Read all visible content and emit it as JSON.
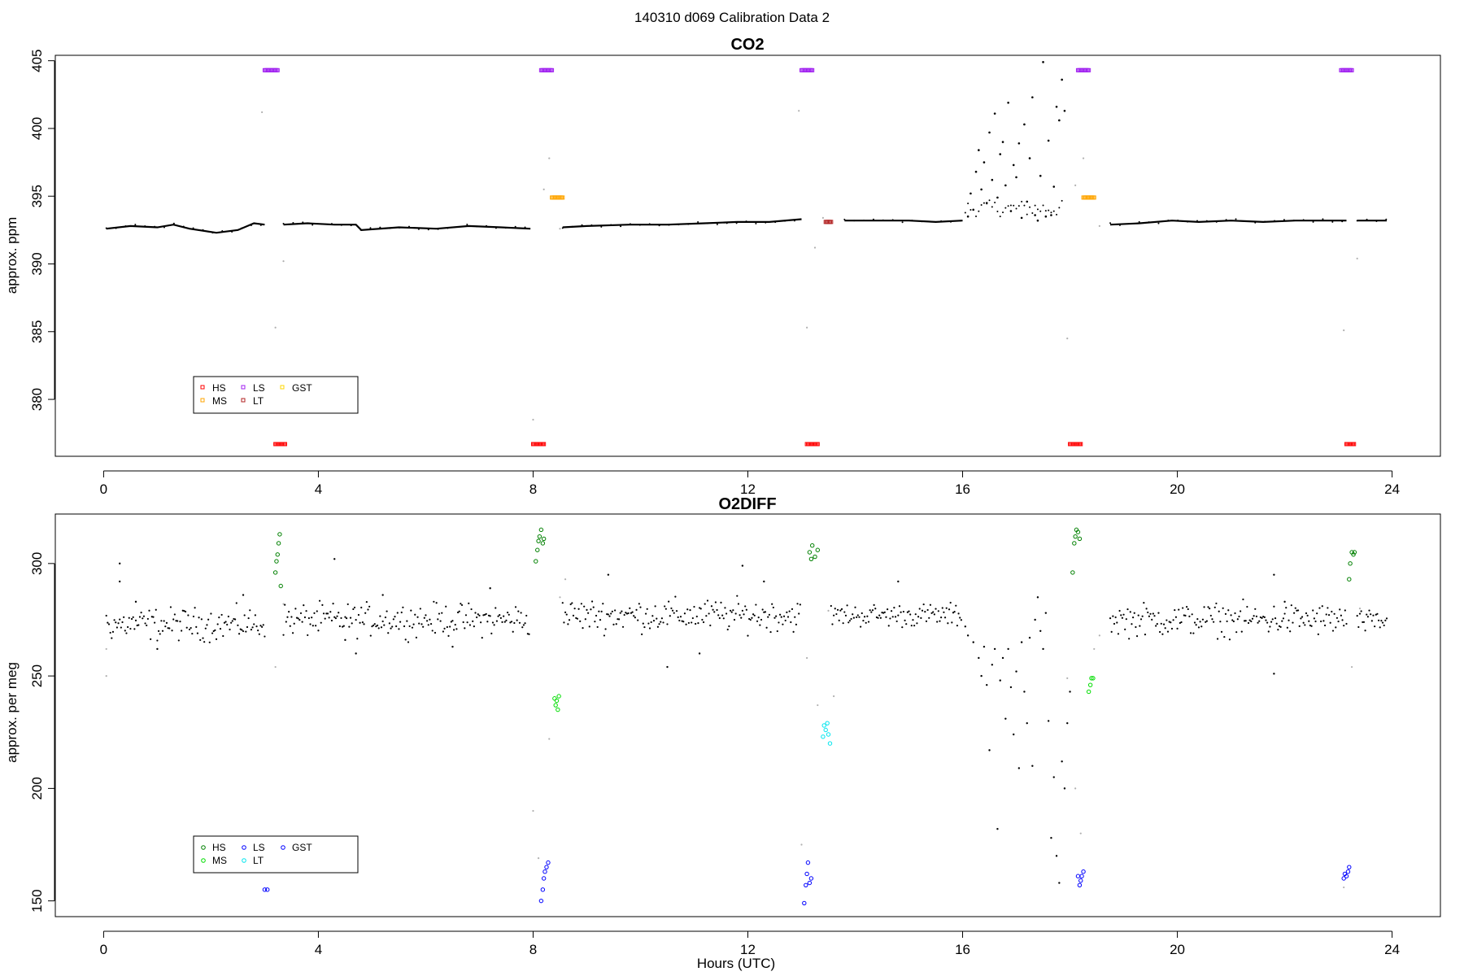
{
  "page": {
    "title": "140310   d069   Calibration Data 2"
  },
  "colors": {
    "ambient": "#000000",
    "ambient_flagged": "#b0b0b0",
    "HS_co2": "#ff0000",
    "MS_co2": "#ffa500",
    "LS_co2": "#a020f0",
    "LT_co2": "#b22222",
    "GST_co2": "#ffd700",
    "HS_o2": "#008000",
    "MS_o2": "#00dd00",
    "LS_o2": "#0000ff",
    "LT_o2": "#00e5ee",
    "GST_o2": "#0000ff"
  },
  "chart_data": [
    {
      "type": "scatter",
      "title": "CO2",
      "xlabel": "",
      "ylabel": "approx. ppm",
      "xlim": [
        -0.9,
        24.9
      ],
      "ylim": [
        375.8,
        405.4
      ],
      "xticks": [
        0,
        4,
        8,
        12,
        16,
        20,
        24
      ],
      "yticks": [
        380,
        385,
        390,
        395,
        400,
        405
      ],
      "legend": {
        "position": "bottom-left",
        "entries": [
          {
            "label": "HS",
            "color_key": "HS_co2"
          },
          {
            "label": "MS",
            "color_key": "MS_co2"
          },
          {
            "label": "LS",
            "color_key": "LS_co2"
          },
          {
            "label": "LT",
            "color_key": "LT_co2"
          },
          {
            "label": "GST",
            "color_key": "GST_co2"
          }
        ]
      },
      "ambient_segments": [
        {
          "x": [
            0.05,
            0.5,
            1.0,
            1.3,
            1.6,
            2.1,
            2.5,
            2.8,
            3.0
          ],
          "y": [
            392.6,
            392.8,
            392.7,
            392.9,
            392.6,
            392.3,
            392.5,
            393.0,
            392.9
          ]
        },
        {
          "x": [
            3.35,
            3.8,
            4.3,
            4.7,
            4.8,
            5.5,
            6.2,
            6.8,
            7.4,
            7.95
          ],
          "y": [
            392.9,
            393.0,
            392.9,
            392.9,
            392.5,
            392.7,
            392.6,
            392.8,
            392.7,
            392.6
          ]
        },
        {
          "x": [
            8.55,
            9.0,
            9.8,
            10.5,
            11.2,
            11.8,
            12.4,
            13.0
          ],
          "y": [
            392.7,
            392.8,
            392.9,
            392.9,
            393.0,
            393.1,
            393.1,
            393.3
          ]
        },
        {
          "x": [
            13.8,
            14.4,
            15.0,
            15.5,
            16.0
          ],
          "y": [
            393.2,
            393.2,
            393.2,
            393.1,
            393.2
          ]
        },
        {
          "x": [
            18.75,
            19.3,
            19.9,
            20.4,
            21.0,
            21.6,
            22.2,
            22.8,
            23.15
          ],
          "y": [
            392.9,
            393.0,
            393.2,
            393.1,
            393.2,
            393.1,
            393.2,
            393.2,
            393.2
          ]
        },
        {
          "x": [
            23.35,
            23.9
          ],
          "y": [
            393.2,
            393.2
          ]
        }
      ],
      "noisy_region": {
        "x_range": [
          16.05,
          17.9
        ],
        "points": [
          [
            16.1,
            393.5
          ],
          [
            16.15,
            395.2
          ],
          [
            16.2,
            394.0
          ],
          [
            16.25,
            396.8
          ],
          [
            16.3,
            398.4
          ],
          [
            16.35,
            395.5
          ],
          [
            16.4,
            397.5
          ],
          [
            16.45,
            394.5
          ],
          [
            16.5,
            399.7
          ],
          [
            16.55,
            396.2
          ],
          [
            16.6,
            401.1
          ],
          [
            16.65,
            394.9
          ],
          [
            16.7,
            398.1
          ],
          [
            16.75,
            399.0
          ],
          [
            16.8,
            395.8
          ],
          [
            16.85,
            401.9
          ],
          [
            16.9,
            393.9
          ],
          [
            16.95,
            397.3
          ],
          [
            17.0,
            396.4
          ],
          [
            17.05,
            398.9
          ],
          [
            17.1,
            393.4
          ],
          [
            17.15,
            400.3
          ],
          [
            17.2,
            394.6
          ],
          [
            17.25,
            397.8
          ],
          [
            17.3,
            402.3
          ],
          [
            17.35,
            393.6
          ],
          [
            17.4,
            393.2
          ],
          [
            17.45,
            396.5
          ],
          [
            17.5,
            404.9
          ],
          [
            17.55,
            393.5
          ],
          [
            17.6,
            399.1
          ],
          [
            17.65,
            393.6
          ],
          [
            17.7,
            395.7
          ],
          [
            17.75,
            401.6
          ],
          [
            17.8,
            400.6
          ],
          [
            17.85,
            403.6
          ],
          [
            17.9,
            401.3
          ]
        ]
      },
      "flagged_points": [
        [
          2.95,
          401.2
        ],
        [
          3.2,
          385.3
        ],
        [
          3.35,
          390.2
        ],
        [
          8.0,
          378.5
        ],
        [
          8.2,
          395.5
        ],
        [
          8.3,
          397.8
        ],
        [
          8.5,
          392.6
        ],
        [
          12.95,
          401.3
        ],
        [
          13.1,
          385.3
        ],
        [
          13.25,
          391.2
        ],
        [
          13.4,
          393.4
        ],
        [
          17.95,
          384.5
        ],
        [
          18.1,
          395.8
        ],
        [
          18.25,
          397.8
        ],
        [
          18.55,
          392.8
        ],
        [
          23.1,
          385.1
        ],
        [
          23.35,
          390.4
        ]
      ],
      "calibration": [
        {
          "gas": "LS",
          "color_key": "LS_co2",
          "marker": "square",
          "y": 404.3,
          "x_ranges": [
            [
              3.0,
              3.25
            ],
            [
              8.15,
              8.35
            ],
            [
              13.0,
              13.2
            ],
            [
              18.15,
              18.35
            ],
            [
              23.05,
              23.25
            ]
          ]
        },
        {
          "gas": "HS",
          "color_key": "HS_co2",
          "marker": "square",
          "y": 376.7,
          "x_ranges": [
            [
              3.2,
              3.4
            ],
            [
              8.0,
              8.2
            ],
            [
              13.1,
              13.3
            ],
            [
              18.0,
              18.2
            ],
            [
              23.15,
              23.3
            ]
          ]
        },
        {
          "gas": "MS",
          "color_key": "MS_co2",
          "marker": "square",
          "y": 394.9,
          "x_ranges": [
            [
              8.35,
              8.55
            ],
            [
              18.25,
              18.45
            ]
          ]
        },
        {
          "gas": "LT",
          "color_key": "LT_co2",
          "marker": "square",
          "y": 393.1,
          "x_ranges": [
            [
              13.45,
              13.55
            ]
          ]
        }
      ]
    },
    {
      "type": "scatter",
      "title": "O2DIFF",
      "xlabel": "Hours (UTC)",
      "ylabel": "approx. per meg",
      "xlim": [
        -0.9,
        24.9
      ],
      "ylim": [
        143.0,
        322.0
      ],
      "xticks": [
        0,
        4,
        8,
        12,
        16,
        20,
        24
      ],
      "yticks": [
        150,
        200,
        250,
        300
      ],
      "legend": {
        "position": "bottom-left",
        "entries": [
          {
            "label": "HS",
            "color_key": "HS_o2"
          },
          {
            "label": "MS",
            "color_key": "MS_o2"
          },
          {
            "label": "LS",
            "color_key": "LS_o2"
          },
          {
            "label": "LT",
            "color_key": "LT_o2"
          },
          {
            "label": "GST",
            "color_key": "GST_o2"
          }
        ]
      },
      "ambient_bands": [
        {
          "x_range": [
            0.05,
            3.0
          ],
          "baseline": 273,
          "spread": 7
        },
        {
          "x_range": [
            3.35,
            7.95
          ],
          "baseline": 275,
          "spread": 7
        },
        {
          "x_range": [
            8.55,
            13.0
          ],
          "baseline": 277,
          "spread": 7
        },
        {
          "x_range": [
            13.55,
            16.0
          ],
          "baseline": 277,
          "spread": 5
        },
        {
          "x_range": [
            18.75,
            23.15
          ],
          "baseline": 275,
          "spread": 7
        },
        {
          "x_range": [
            23.35,
            23.9
          ],
          "baseline": 274,
          "spread": 5
        }
      ],
      "outliers": [
        [
          0.3,
          292
        ],
        [
          0.3,
          300
        ],
        [
          0.6,
          283
        ],
        [
          1.0,
          262
        ],
        [
          2.6,
          286
        ],
        [
          4.3,
          302
        ],
        [
          4.5,
          266
        ],
        [
          4.7,
          260
        ],
        [
          5.2,
          286
        ],
        [
          6.5,
          263
        ],
        [
          7.2,
          289
        ],
        [
          9.4,
          295
        ],
        [
          10.5,
          254
        ],
        [
          11.1,
          260
        ],
        [
          11.9,
          299
        ],
        [
          12.3,
          292
        ],
        [
          14.8,
          292
        ],
        [
          21.8,
          295
        ],
        [
          21.8,
          251
        ],
        [
          22.0,
          283
        ]
      ],
      "dip_region": [
        [
          16.05,
          272
        ],
        [
          16.1,
          268
        ],
        [
          16.2,
          265
        ],
        [
          16.3,
          258
        ],
        [
          16.35,
          250
        ],
        [
          16.4,
          263
        ],
        [
          16.45,
          246
        ],
        [
          16.5,
          217
        ],
        [
          16.55,
          255
        ],
        [
          16.6,
          262
        ],
        [
          16.65,
          182
        ],
        [
          16.7,
          248
        ],
        [
          16.75,
          258
        ],
        [
          16.8,
          231
        ],
        [
          16.85,
          262
        ],
        [
          16.9,
          245
        ],
        [
          16.95,
          224
        ],
        [
          17.0,
          252
        ],
        [
          17.05,
          209
        ],
        [
          17.1,
          265
        ],
        [
          17.15,
          243
        ],
        [
          17.2,
          229
        ],
        [
          17.25,
          267
        ],
        [
          17.3,
          210
        ],
        [
          17.35,
          275
        ],
        [
          17.4,
          285
        ],
        [
          17.45,
          270
        ],
        [
          17.5,
          262
        ],
        [
          17.55,
          278
        ],
        [
          17.6,
          230
        ],
        [
          17.65,
          178
        ],
        [
          17.7,
          205
        ],
        [
          17.75,
          170
        ],
        [
          17.8,
          158
        ],
        [
          17.85,
          212
        ],
        [
          17.9,
          200
        ],
        [
          17.95,
          229
        ],
        [
          18.0,
          243
        ]
      ],
      "flagged_points": [
        [
          0.05,
          250
        ],
        [
          0.05,
          262
        ],
        [
          3.2,
          254
        ],
        [
          3.35,
          282
        ],
        [
          8.0,
          190
        ],
        [
          8.1,
          169
        ],
        [
          8.3,
          222
        ],
        [
          8.5,
          285
        ],
        [
          8.6,
          293
        ],
        [
          13.0,
          175
        ],
        [
          13.1,
          258
        ],
        [
          13.3,
          237
        ],
        [
          13.5,
          279
        ],
        [
          13.6,
          241
        ],
        [
          17.95,
          249
        ],
        [
          18.1,
          200
        ],
        [
          18.2,
          180
        ],
        [
          18.45,
          262
        ],
        [
          18.55,
          268
        ],
        [
          23.1,
          156
        ],
        [
          23.25,
          254
        ],
        [
          23.4,
          280
        ]
      ],
      "calibration": [
        {
          "gas": "HS",
          "color_key": "HS_o2",
          "marker": "circle",
          "points": [
            [
              3.2,
              296
            ],
            [
              3.22,
              301
            ],
            [
              3.24,
              304
            ],
            [
              3.26,
              309
            ],
            [
              3.28,
              313
            ],
            [
              3.3,
              290
            ],
            [
              8.05,
              301
            ],
            [
              8.08,
              306
            ],
            [
              8.1,
              310
            ],
            [
              8.12,
              312
            ],
            [
              8.15,
              315
            ],
            [
              8.18,
              309
            ],
            [
              8.2,
              311
            ],
            [
              13.15,
              305
            ],
            [
              13.18,
              302
            ],
            [
              13.2,
              308
            ],
            [
              13.25,
              303
            ],
            [
              13.3,
              306
            ],
            [
              18.05,
              296
            ],
            [
              18.08,
              309
            ],
            [
              18.1,
              312
            ],
            [
              18.12,
              315
            ],
            [
              18.15,
              314
            ],
            [
              18.18,
              311
            ],
            [
              23.2,
              293
            ],
            [
              23.22,
              300
            ],
            [
              23.25,
              305
            ],
            [
              23.28,
              304
            ],
            [
              23.3,
              305
            ]
          ]
        },
        {
          "gas": "MS",
          "color_key": "MS_o2",
          "marker": "circle",
          "points": [
            [
              8.4,
              240
            ],
            [
              8.42,
              237
            ],
            [
              8.44,
              239
            ],
            [
              8.46,
              235
            ],
            [
              8.48,
              241
            ],
            [
              18.35,
              243
            ],
            [
              18.38,
              246
            ],
            [
              18.4,
              249
            ],
            [
              18.43,
              249
            ]
          ]
        },
        {
          "gas": "LS",
          "color_key": "LS_o2",
          "marker": "circle",
          "points": [
            [
              3.0,
              155
            ],
            [
              3.05,
              155
            ],
            [
              8.15,
              150
            ],
            [
              8.18,
              155
            ],
            [
              8.2,
              160
            ],
            [
              8.22,
              163
            ],
            [
              8.25,
              165
            ],
            [
              8.28,
              167
            ],
            [
              13.05,
              149
            ],
            [
              13.08,
              157
            ],
            [
              13.1,
              162
            ],
            [
              13.12,
              167
            ],
            [
              13.15,
              158
            ],
            [
              13.18,
              160
            ],
            [
              18.15,
              161
            ],
            [
              18.18,
              157
            ],
            [
              18.2,
              159
            ],
            [
              18.22,
              161
            ],
            [
              18.25,
              163
            ],
            [
              23.1,
              160
            ],
            [
              23.12,
              162
            ],
            [
              23.15,
              161
            ],
            [
              23.18,
              163
            ],
            [
              23.2,
              165
            ]
          ]
        },
        {
          "gas": "LT",
          "color_key": "LT_o2",
          "marker": "circle",
          "points": [
            [
              13.4,
              223
            ],
            [
              13.42,
              228
            ],
            [
              13.45,
              226
            ],
            [
              13.48,
              229
            ],
            [
              13.5,
              224
            ],
            [
              13.53,
              220
            ]
          ]
        }
      ]
    }
  ]
}
